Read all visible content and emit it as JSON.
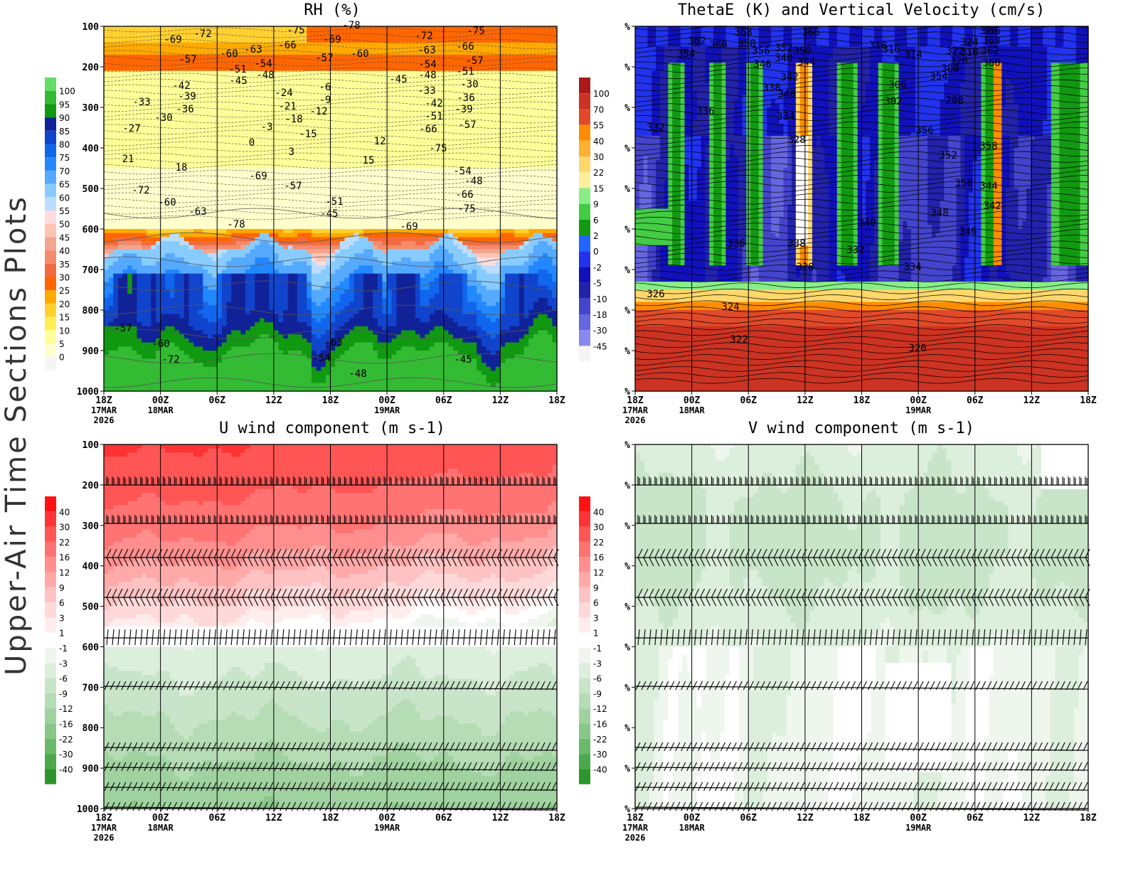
{
  "page_title": "Upper-Air Time Sections Plots",
  "time_axis": {
    "ticks": [
      "18Z",
      "00Z",
      "06Z",
      "12Z",
      "18Z",
      "00Z",
      "06Z",
      "12Z",
      "18Z"
    ],
    "dates": [
      {
        "tick": 0,
        "lines": [
          "17MAR",
          "2026"
        ]
      },
      {
        "tick": 1,
        "lines": [
          "18MAR"
        ]
      },
      {
        "tick": 5,
        "lines": [
          "19MAR"
        ]
      }
    ]
  },
  "pressure_ticks_labeled": [
    "100",
    "200",
    "300",
    "400",
    "500",
    "600",
    "700",
    "800",
    "900",
    "1000"
  ],
  "pressure_ticks_percent": [
    "%",
    "%",
    "%",
    "%",
    "%",
    "%",
    "%",
    "%",
    "%",
    "%"
  ],
  "colorbars": {
    "rh": {
      "labels": [
        "100",
        "95",
        "90",
        "85",
        "80",
        "75",
        "70",
        "65",
        "60",
        "55",
        "50",
        "45",
        "40",
        "35",
        "30",
        "25",
        "20",
        "15",
        "10",
        "5",
        "0"
      ],
      "colors": [
        "#66dd66",
        "#33bb33",
        "#119911",
        "#112299",
        "#1144cc",
        "#1166ee",
        "#2288ff",
        "#55aaff",
        "#88ccff",
        "#bbddff",
        "#ffdddd",
        "#ffc4b4",
        "#f4a590",
        "#f48c6c",
        "#f06c40",
        "#ff6600",
        "#ffaa00",
        "#ffd030",
        "#ffee55",
        "#ffff99",
        "#ffffcc",
        "#f5f5f5"
      ]
    },
    "thetae": {
      "labels": [
        "100",
        "70",
        "55",
        "40",
        "30",
        "22",
        "15",
        "9",
        "6",
        "2",
        "0",
        "-2",
        "-5",
        "-10",
        "-18",
        "-30",
        "-45"
      ],
      "colors": [
        "#aa1a1a",
        "#cc3322",
        "#e04a2a",
        "#ff8c00",
        "#ffb030",
        "#ffd76a",
        "#ffee99",
        "#88ee88",
        "#44cc44",
        "#119911",
        "#2266ff",
        "#2233ee",
        "#1111bb",
        "#2222aa",
        "#4444cc",
        "#6666dd",
        "#8888ee",
        "#f5f5f5"
      ]
    },
    "u": {
      "labels": [
        "40",
        "30",
        "22",
        "16",
        "12",
        "9",
        "6",
        "3",
        "1",
        "-1",
        "-3",
        "-6",
        "-9",
        "-12",
        "-16",
        "-22",
        "-30",
        "-40"
      ],
      "colors": [
        "#ff1111",
        "#ff3333",
        "#ff5555",
        "#ff7373",
        "#ff8f8f",
        "#ffa9a9",
        "#ffc2c2",
        "#ffd9d9",
        "#ffeded",
        "#ffffff",
        "#eef6ee",
        "#dceedc",
        "#c9e5c9",
        "#b5dcb5",
        "#a0d2a0",
        "#88c788",
        "#6bba6b",
        "#4ba94b",
        "#2c962c"
      ]
    },
    "v": {
      "labels": [
        "40",
        "30",
        "22",
        "16",
        "12",
        "9",
        "6",
        "3",
        "1",
        "-1",
        "-3",
        "-6",
        "-9",
        "-12",
        "-16",
        "-22",
        "-30",
        "-40"
      ],
      "colors": [
        "#ff1111",
        "#ff3333",
        "#ff5555",
        "#ff7373",
        "#ff8f8f",
        "#ffa9a9",
        "#ffc2c2",
        "#ffd9d9",
        "#ffeded",
        "#ffffff",
        "#eef6ee",
        "#dceedc",
        "#c9e5c9",
        "#b5dcb5",
        "#a0d2a0",
        "#88c788",
        "#6bba6b",
        "#4ba94b",
        "#2c962c"
      ]
    }
  },
  "chart_data": [
    {
      "id": "rh",
      "type": "heatmap",
      "title": "RH (%)",
      "x": [
        "18Z 17MAR",
        "00Z 18MAR",
        "06Z",
        "12Z",
        "18Z",
        "00Z 19MAR",
        "06Z",
        "12Z",
        "18Z"
      ],
      "y_levels_hpa": [
        100,
        200,
        300,
        400,
        500,
        600,
        700,
        800,
        900,
        1000
      ],
      "ylim": [
        100,
        1000
      ],
      "overlay": "temperature contours (degC)",
      "contour_labels": [
        "-72",
        "-69",
        "-57",
        "-60",
        "-63",
        "-51",
        "-45",
        "-54",
        "-48",
        "-66",
        "-75",
        "-78",
        "-69",
        "-57",
        "-60",
        "-72",
        "-63",
        "-54",
        "-48",
        "-45",
        "-66",
        "-75",
        "-57",
        "-51",
        "-42",
        "-39",
        "-36",
        "-33",
        "-30",
        "-27",
        "-24",
        "-21",
        "-18",
        "-15",
        "-12",
        "-9",
        "-6",
        "-3",
        "0",
        "3",
        "12",
        "15",
        "18",
        "21"
      ],
      "grid": true
    },
    {
      "id": "thetae",
      "type": "heatmap",
      "title": "ThetaE (K) and Vertical Velocity (cm/s)",
      "x": [
        "18Z 17MAR",
        "00Z 18MAR",
        "06Z",
        "12Z",
        "18Z",
        "00Z 19MAR",
        "06Z",
        "12Z",
        "18Z"
      ],
      "overlay": "equivalent potential temperature contours (K)",
      "contour_labels": [
        "366",
        "368",
        "362",
        "360",
        "354",
        "358",
        "356",
        "352",
        "350",
        "348",
        "346",
        "344",
        "342",
        "340",
        "338",
        "336",
        "334",
        "332",
        "328",
        "326",
        "324",
        "322",
        "320",
        "318",
        "316",
        "314",
        "310",
        "308",
        "306",
        "302",
        "298"
      ],
      "grid": true
    },
    {
      "id": "u",
      "type": "heatmap",
      "title": "U wind component (m s-1)",
      "x": [
        "18Z 17MAR",
        "00Z 18MAR",
        "06Z",
        "12Z",
        "18Z",
        "00Z 19MAR",
        "06Z",
        "12Z",
        "18Z"
      ],
      "y_levels_hpa": [
        100,
        200,
        300,
        400,
        500,
        600,
        700,
        800,
        900,
        1000
      ],
      "overlay": "wind barbs",
      "grid": true
    },
    {
      "id": "v",
      "type": "heatmap",
      "title": "V wind component (m s-1)",
      "x": [
        "18Z 17MAR",
        "00Z 18MAR",
        "06Z",
        "12Z",
        "18Z",
        "00Z 19MAR",
        "06Z",
        "12Z",
        "18Z"
      ],
      "overlay": "wind barbs",
      "grid": true
    }
  ]
}
